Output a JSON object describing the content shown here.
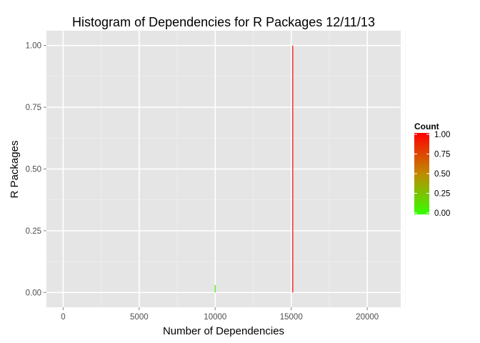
{
  "chart_data": {
    "type": "bar",
    "title": "Histogram of Dependencies for R Packages 12/11/13",
    "xlabel": "Number of Dependencies",
    "ylabel": "R Packages",
    "xlim": [
      -1100,
      22200
    ],
    "ylim": [
      -0.06,
      1.06
    ],
    "x_ticks": [
      0,
      5000,
      10000,
      15000,
      20000
    ],
    "x_tick_labels": [
      "0",
      "5000",
      "10000",
      "15000",
      "20000"
    ],
    "y_ticks": [
      0,
      0.25,
      0.5,
      0.75,
      1
    ],
    "y_tick_labels": [
      "0.00",
      "0.25",
      "0.50",
      "0.75",
      "1.00"
    ],
    "grid": true,
    "background_color": "#e5e5e5",
    "bars": [
      {
        "x": 10000,
        "count": 0.03
      },
      {
        "x": 15100,
        "count": 1.0
      }
    ],
    "legend": {
      "title": "Count",
      "position": "right",
      "low_color": "#33ff00",
      "high_color": "#ff0000",
      "ticks": [
        1,
        0.75,
        0.5,
        0.25,
        0
      ],
      "tick_labels": [
        "1.00",
        "0.75",
        "0.50",
        "0.25",
        "0.00"
      ]
    }
  }
}
